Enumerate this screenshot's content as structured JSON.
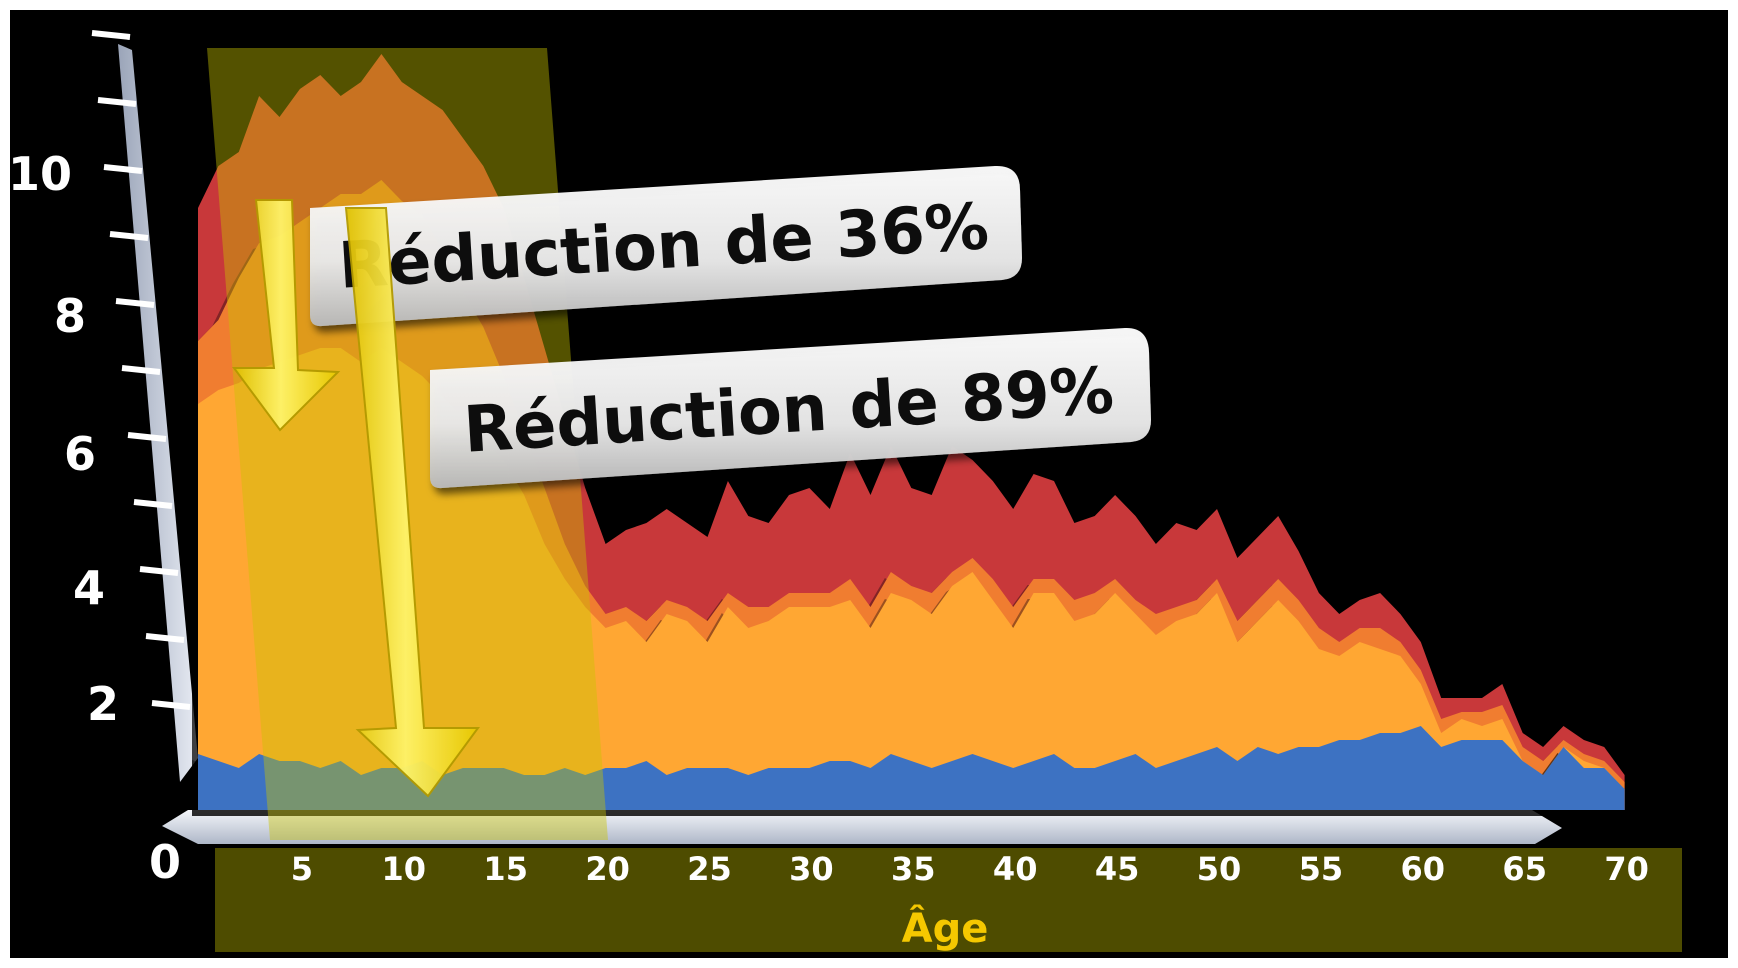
{
  "chart_data": {
    "type": "area",
    "xlabel": "Âge",
    "ylabel": "",
    "title": "",
    "xlim": [
      0,
      71
    ],
    "ylim": [
      0,
      11
    ],
    "x_ticks": [
      5,
      10,
      15,
      20,
      25,
      30,
      35,
      40,
      45,
      50,
      55,
      60,
      65,
      70
    ],
    "y_ticks": [
      0,
      2,
      4,
      6,
      8,
      10
    ],
    "x": [
      0,
      1,
      2,
      3,
      4,
      5,
      6,
      7,
      8,
      9,
      10,
      11,
      12,
      13,
      14,
      15,
      16,
      17,
      18,
      19,
      20,
      21,
      22,
      23,
      24,
      25,
      26,
      27,
      28,
      29,
      30,
      31,
      32,
      33,
      34,
      35,
      36,
      37,
      38,
      39,
      40,
      41,
      42,
      43,
      44,
      45,
      46,
      47,
      48,
      49,
      50,
      51,
      52,
      53,
      54,
      55,
      56,
      57,
      58,
      59,
      60,
      61,
      62,
      63,
      64,
      65,
      66,
      67,
      68,
      69,
      70
    ],
    "series": [
      {
        "color": "#c8383a",
        "values": [
          8.6,
          9.2,
          9.4,
          10.2,
          9.9,
          10.3,
          10.5,
          10.2,
          10.4,
          10.8,
          10.4,
          10.2,
          10.0,
          9.6,
          9.2,
          8.6,
          7.6,
          6.6,
          5.6,
          4.6,
          3.8,
          4.0,
          4.1,
          4.3,
          4.1,
          3.9,
          4.7,
          4.2,
          4.1,
          4.5,
          4.6,
          4.3,
          5.1,
          4.5,
          5.2,
          4.6,
          4.5,
          5.2,
          5.0,
          4.7,
          4.3,
          4.8,
          4.7,
          4.1,
          4.2,
          4.5,
          4.2,
          3.8,
          4.1,
          4.0,
          4.3,
          3.6,
          3.9,
          4.2,
          3.7,
          3.1,
          2.8,
          3.0,
          3.1,
          2.8,
          2.4,
          1.6,
          1.6,
          1.6,
          1.8,
          1.1,
          0.9,
          1.2,
          1.0,
          0.9,
          0.5
        ]
      },
      {
        "color": "#f07d30",
        "values": [
          6.7,
          7.0,
          7.6,
          8.1,
          8.2,
          8.4,
          8.6,
          8.8,
          8.8,
          9.0,
          8.7,
          8.5,
          8.0,
          7.4,
          6.9,
          6.2,
          5.4,
          4.6,
          3.8,
          3.2,
          2.8,
          2.9,
          2.7,
          3.0,
          2.9,
          2.7,
          3.1,
          2.9,
          2.9,
          3.1,
          3.1,
          3.1,
          3.3,
          2.9,
          3.4,
          3.2,
          3.1,
          3.4,
          3.6,
          3.3,
          2.9,
          3.3,
          3.3,
          3.0,
          3.1,
          3.3,
          3.0,
          2.8,
          2.9,
          3.0,
          3.3,
          2.7,
          3.0,
          3.3,
          3.0,
          2.6,
          2.4,
          2.6,
          2.6,
          2.4,
          2.0,
          1.3,
          1.4,
          1.4,
          1.5,
          0.9,
          0.7,
          1.0,
          0.8,
          0.7,
          0.4
        ]
      },
      {
        "color": "#ffa733",
        "values": [
          5.8,
          6.0,
          6.1,
          6.3,
          6.4,
          6.5,
          6.6,
          6.6,
          6.4,
          6.6,
          6.4,
          6.2,
          5.9,
          5.6,
          5.3,
          5.0,
          4.5,
          3.8,
          3.3,
          2.9,
          2.6,
          2.7,
          2.4,
          2.8,
          2.7,
          2.4,
          2.9,
          2.6,
          2.7,
          2.9,
          2.9,
          2.9,
          3.0,
          2.6,
          3.1,
          3.0,
          2.8,
          3.2,
          3.4,
          3.0,
          2.6,
          3.1,
          3.1,
          2.7,
          2.8,
          3.1,
          2.8,
          2.5,
          2.7,
          2.8,
          3.1,
          2.4,
          2.7,
          3.0,
          2.7,
          2.3,
          2.2,
          2.4,
          2.3,
          2.2,
          1.8,
          1.1,
          1.3,
          1.2,
          1.3,
          0.7,
          0.5,
          0.9,
          0.7,
          0.6,
          0.3
        ]
      },
      {
        "color": "#3d72c2",
        "values": [
          0.8,
          0.7,
          0.6,
          0.8,
          0.7,
          0.7,
          0.6,
          0.7,
          0.5,
          0.6,
          0.6,
          0.7,
          0.5,
          0.6,
          0.6,
          0.6,
          0.5,
          0.5,
          0.6,
          0.5,
          0.6,
          0.6,
          0.7,
          0.5,
          0.6,
          0.6,
          0.6,
          0.5,
          0.6,
          0.6,
          0.6,
          0.7,
          0.7,
          0.6,
          0.8,
          0.7,
          0.6,
          0.7,
          0.8,
          0.7,
          0.6,
          0.7,
          0.8,
          0.6,
          0.6,
          0.7,
          0.8,
          0.6,
          0.7,
          0.8,
          0.9,
          0.7,
          0.9,
          0.8,
          0.9,
          0.9,
          1.0,
          1.0,
          1.1,
          1.1,
          1.2,
          0.9,
          1.0,
          1.0,
          1.0,
          0.7,
          0.5,
          0.9,
          0.6,
          0.6,
          0.3
        ]
      }
    ],
    "annotations": [
      "Réduction de 36%",
      "Réduction de 89%"
    ],
    "highlight_range": [
      0,
      19
    ]
  }
}
